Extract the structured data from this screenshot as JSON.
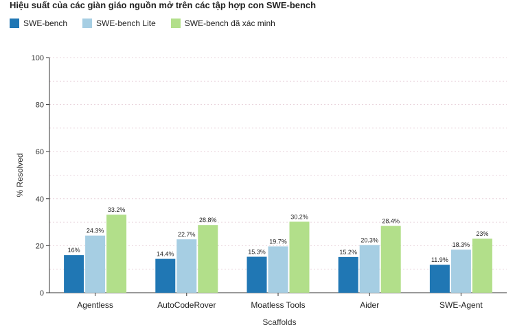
{
  "chart_data": {
    "type": "bar",
    "title": "Hiệu suất của các giàn giáo nguồn mở trên các tập hợp con SWE-bench",
    "xlabel": "Scaffolds",
    "ylabel": "% Resolved",
    "ylim": [
      0,
      100
    ],
    "yticks": [
      0,
      20,
      40,
      60,
      80,
      100
    ],
    "grid": true,
    "legend_position": "top-left",
    "categories": [
      "Agentless",
      "AutoCodeRover",
      "Moatless Tools",
      "Aider",
      "SWE-Agent"
    ],
    "series": [
      {
        "name": "SWE-bench",
        "color": "#2077b4",
        "values": [
          16,
          14.4,
          15.3,
          15.2,
          11.9
        ],
        "labels": [
          "16%",
          "14.4%",
          "15.3%",
          "15.2%",
          "11.9%"
        ]
      },
      {
        "name": "SWE-bench Lite",
        "color": "#a6cee3",
        "values": [
          24.3,
          22.7,
          19.7,
          20.3,
          18.3
        ],
        "labels": [
          "24.3%",
          "22.7%",
          "19.7%",
          "20.3%",
          "18.3%"
        ]
      },
      {
        "name": "SWE-bench đã xác minh",
        "color": "#b2df8a",
        "values": [
          33.2,
          28.8,
          30.2,
          28.4,
          23
        ],
        "labels": [
          "33.2%",
          "28.8%",
          "30.2%",
          "28.4%",
          "23%"
        ]
      }
    ]
  }
}
